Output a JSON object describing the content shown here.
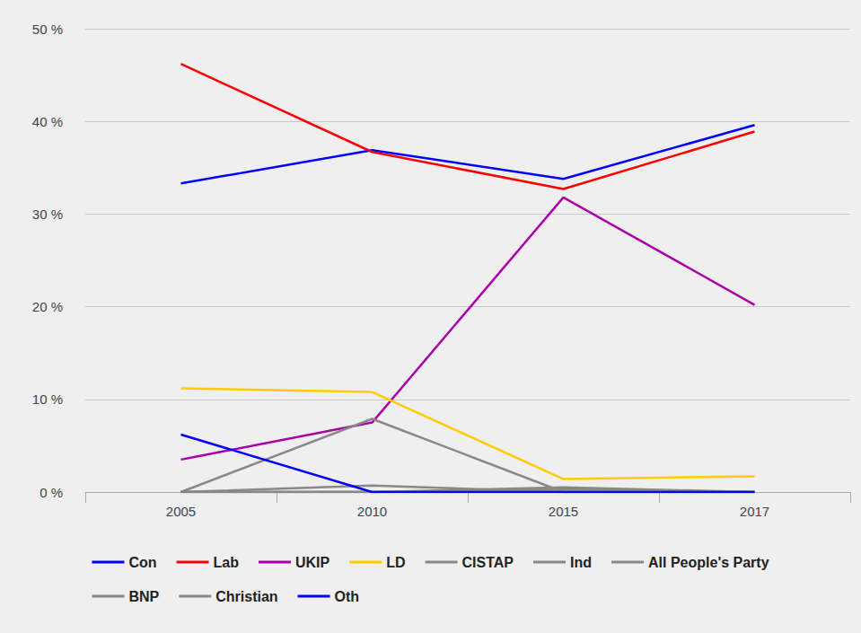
{
  "chart_data": {
    "type": "line",
    "categories": [
      "2005",
      "2010",
      "2015",
      "2017"
    ],
    "ylim": [
      0,
      50
    ],
    "yticks": [
      {
        "value": 0,
        "label": "0 %"
      },
      {
        "value": 10,
        "label": "10 %"
      },
      {
        "value": 20,
        "label": "20 %"
      },
      {
        "value": 30,
        "label": "30 %"
      },
      {
        "value": 40,
        "label": "40 %"
      },
      {
        "value": 50,
        "label": "50 %"
      }
    ],
    "grid": true,
    "legend": "bottom",
    "series": [
      {
        "name": "Con",
        "color": "#0000ff",
        "values": [
          33.3,
          36.9,
          33.8,
          39.6
        ]
      },
      {
        "name": "Lab",
        "color": "#ff0000",
        "values": [
          46.2,
          36.7,
          32.7,
          38.9
        ]
      },
      {
        "name": "UKIP",
        "color": "#aa00aa",
        "values": [
          3.5,
          7.5,
          31.8,
          20.2
        ]
      },
      {
        "name": "LD",
        "color": "#ffcc00",
        "values": [
          11.2,
          10.8,
          1.4,
          1.7
        ]
      },
      {
        "name": "CISTAP",
        "color": "#888888",
        "values": [
          0,
          0,
          0.5,
          0
        ]
      },
      {
        "name": "Ind",
        "color": "#888888",
        "values": [
          0,
          0,
          0.3,
          0
        ]
      },
      {
        "name": "All People's Party",
        "color": "#888888",
        "values": [
          0,
          0,
          0,
          0
        ]
      },
      {
        "name": "BNP",
        "color": "#888888",
        "values": [
          0,
          7.9,
          0,
          0
        ]
      },
      {
        "name": "Christian",
        "color": "#888888",
        "values": [
          0,
          0.7,
          0,
          0
        ]
      },
      {
        "name": "Oth",
        "color": "#0000ff",
        "values": [
          6.2,
          0,
          0,
          0
        ]
      }
    ]
  }
}
